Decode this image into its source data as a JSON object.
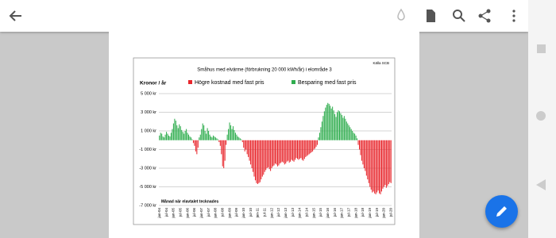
{
  "chart_data": {
    "type": "bar",
    "title": "Småhus med elvärme (förbrukning 20 000 kWh/år) i elområde 3",
    "source": "Källa SCB",
    "ylabel": "Kronor / år",
    "xlabel": "Månad när elavtalet tecknades",
    "legend": [
      {
        "name": "Högre kostnad med fast pris",
        "color": "#e8262c"
      },
      {
        "name": "Besparing med fast pris",
        "color": "#2fad4e"
      }
    ],
    "ylim": [
      -7000,
      5000
    ],
    "yticks": [
      {
        "value": 5000,
        "label": "5 000 kr"
      },
      {
        "value": 3000,
        "label": "3 000 kr"
      },
      {
        "value": 1000,
        "label": "1 000 kr"
      },
      {
        "value": -1000,
        "label": "-1 000 kr"
      },
      {
        "value": -3000,
        "label": "-3 000 kr"
      },
      {
        "value": -5000,
        "label": "-5 000 kr"
      },
      {
        "value": -7000,
        "label": "-7 000 kr"
      }
    ],
    "grid": true,
    "categories": [
      "jan-04",
      null,
      null,
      null,
      null,
      null,
      "jul-04",
      null,
      null,
      null,
      null,
      null,
      "jan-05",
      null,
      null,
      null,
      null,
      null,
      "jul-05",
      null,
      null,
      null,
      null,
      null,
      "jan-06",
      null,
      null,
      null,
      null,
      null,
      "jul-06",
      null,
      null,
      null,
      null,
      null,
      "jan-07",
      null,
      null,
      null,
      null,
      null,
      "jul-07",
      null,
      null,
      null,
      null,
      null,
      "jan-08",
      null,
      null,
      null,
      null,
      null,
      "jul-08",
      null,
      null,
      null,
      null,
      null,
      "jan-09",
      null,
      null,
      null,
      null,
      null,
      "jul-09",
      null,
      null,
      null,
      null,
      null,
      "jan-10",
      null,
      null,
      null,
      null,
      null,
      "jul-10",
      null,
      null,
      null,
      null,
      null,
      "jan-11",
      null,
      null,
      null,
      null,
      null,
      "jul-11",
      null,
      null,
      null,
      null,
      null,
      "jan-12",
      null,
      null,
      null,
      null,
      null,
      "jul-12",
      null,
      null,
      null,
      null,
      null,
      "jan-13",
      null,
      null,
      null,
      null,
      null,
      "jul-13",
      null,
      null,
      null,
      null,
      null,
      "jan-14",
      null,
      null,
      null,
      null,
      null,
      "jul-14",
      null,
      null,
      null,
      null,
      null,
      "jan-15",
      null,
      null,
      null,
      null,
      null,
      "jul-15",
      null,
      null,
      null,
      null,
      null,
      "jan-16",
      null,
      null,
      null,
      null,
      null,
      "jul-16",
      null,
      null,
      null,
      null,
      null,
      "jan-17",
      null,
      null,
      null,
      null,
      null,
      "jul-17",
      null,
      null,
      null,
      null,
      null,
      "jan-18",
      null,
      null,
      null,
      null,
      null,
      "jul-18",
      null,
      null,
      null,
      null,
      null,
      "jan-19",
      null,
      null,
      null,
      null,
      null,
      "jul-19",
      null,
      null,
      null,
      null,
      null,
      "jan-20",
      null,
      null,
      null,
      null,
      null,
      "jul-20"
    ],
    "values": [
      500,
      800,
      700,
      400,
      300,
      600,
      900,
      700,
      500,
      400,
      800,
      1200,
      1800,
      2300,
      2100,
      1600,
      1300,
      1700,
      1500,
      1100,
      900,
      700,
      1000,
      1200,
      800,
      600,
      400,
      300,
      100,
      -300,
      -600,
      -1200,
      -1500,
      -800,
      300,
      600,
      1200,
      1800,
      1600,
      1000,
      700,
      1300,
      1000,
      600,
      400,
      300,
      500,
      400,
      300,
      200,
      100,
      -200,
      -600,
      -1500,
      -2800,
      -3000,
      -2200,
      -500,
      600,
      1200,
      1900,
      1600,
      1200,
      1500,
      1100,
      800,
      600,
      400,
      300,
      200,
      100,
      -200,
      -800,
      -1200,
      -1000,
      -1500,
      -1800,
      -2200,
      -2600,
      -3000,
      -3400,
      -3900,
      -4300,
      -4600,
      -4700,
      -4600,
      -4500,
      -4200,
      -3900,
      -3700,
      -3400,
      -3200,
      -3000,
      -2900,
      -3100,
      -3300,
      -3000,
      -2800,
      -2700,
      -2500,
      -2600,
      -2800,
      -2700,
      -2500,
      -2400,
      -2300,
      -2400,
      -2600,
      -2500,
      -2300,
      -2200,
      -2400,
      -2300,
      -2100,
      -2200,
      -2300,
      -2100,
      -1900,
      -2000,
      -2100,
      -2000,
      -1900,
      -2100,
      -2200,
      -2000,
      -1800,
      -1700,
      -1600,
      -1500,
      -1400,
      -1300,
      -1200,
      -1000,
      -900,
      -700,
      -500,
      300,
      800,
      1400,
      2000,
      2600,
      3100,
      3500,
      3800,
      4000,
      3900,
      3700,
      3400,
      3600,
      3200,
      2800,
      2500,
      3000,
      3200,
      3100,
      2900,
      2700,
      2400,
      2600,
      2300,
      2000,
      1800,
      1600,
      1400,
      1200,
      1000,
      800,
      700,
      500,
      200,
      -500,
      -1000,
      -1600,
      -2200,
      -2600,
      -3000,
      -3300,
      -3800,
      -4200,
      -4600,
      -5000,
      -5300,
      -5600,
      -5500,
      -5700,
      -5800,
      -5600,
      -5400,
      -5700,
      -5800,
      -5500,
      -5200,
      -5000,
      -4800,
      -5100,
      -4900,
      -4700,
      -4500,
      -4600
    ]
  }
}
